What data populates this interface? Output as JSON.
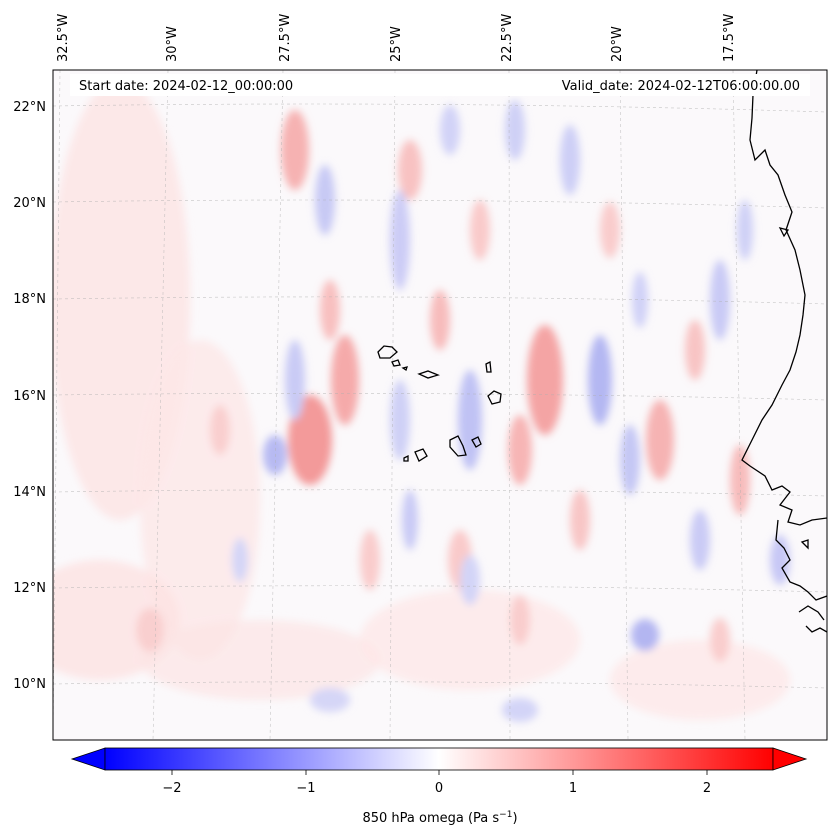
{
  "map": {
    "start_date_text": "Start date: 2024-02-12_00:00:00",
    "valid_date_text": "Valid_date: 2024-02-12T06:00:00.00",
    "lon_labels": [
      "32.5°W",
      "30°W",
      "27.5°W",
      "25°W",
      "22.5°W",
      "20°W",
      "17.5°W"
    ],
    "lat_labels": [
      "22°N",
      "20°N",
      "18°N",
      "16°N",
      "14°N",
      "12°N",
      "10°N"
    ],
    "extent": {
      "lon_min": -33.0,
      "lon_max": -16.0,
      "lat_min": 8.8,
      "lat_max": 22.8
    },
    "colormap": "bwr",
    "gridlines": true,
    "coastline_color": "#000000"
  },
  "colorbar": {
    "label_prefix": "850 hPa omega (Pa s",
    "label_exp": "−1",
    "label_suffix": ")",
    "ticks": [
      "−2",
      "−1",
      "0",
      "1",
      "2"
    ],
    "tick_values": [
      -2,
      -1,
      0,
      1,
      2
    ],
    "vmin": -2.5,
    "vmax": 2.5,
    "extend": "both",
    "low_color": "#0000ff",
    "mid_color": "#ffffff",
    "high_color": "#ff0000"
  }
}
